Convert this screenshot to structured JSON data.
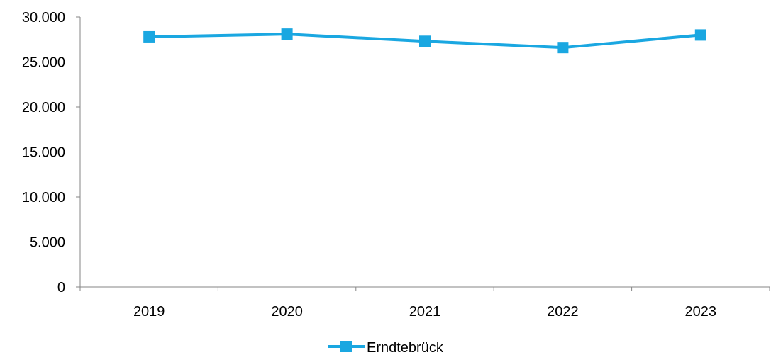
{
  "chart_data": {
    "type": "line",
    "categories": [
      "2019",
      "2020",
      "2021",
      "2022",
      "2023"
    ],
    "series": [
      {
        "name": "Erndtebrück",
        "values": [
          27800,
          28100,
          27300,
          26600,
          28000
        ],
        "color": "#1aa7e1"
      }
    ],
    "ylim": [
      0,
      30000
    ],
    "y_ticks": [
      0,
      5000,
      10000,
      15000,
      20000,
      25000,
      30000
    ],
    "y_tick_labels": [
      "0",
      "5.000",
      "10.000",
      "15.000",
      "20.000",
      "25.000",
      "30.000"
    ],
    "axis_color": "#868686",
    "grid": false,
    "legend": "bottom-center",
    "title": "",
    "xlabel": "",
    "ylabel": ""
  }
}
